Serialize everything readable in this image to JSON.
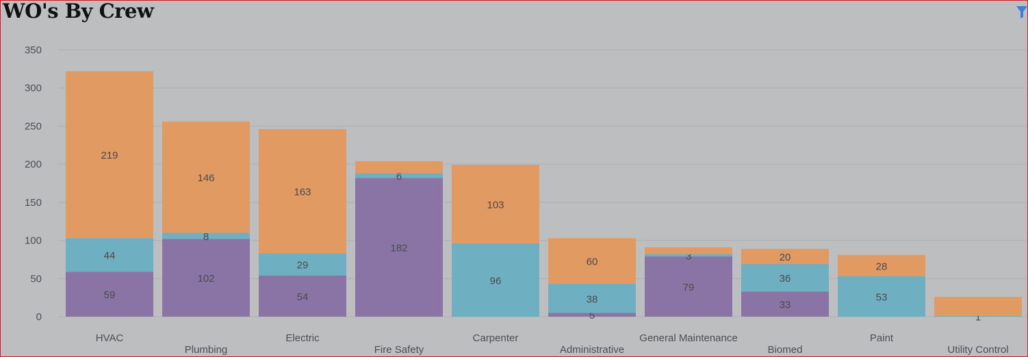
{
  "title": "WO's By Crew",
  "filter_icon": "filter-icon",
  "chart_data": {
    "type": "bar",
    "stacked": true,
    "categories": [
      "HVAC",
      "Plumbing",
      "Electric",
      "Fire Safety",
      "Carpenter",
      "Administrative",
      "General Maintenance",
      "Biomed",
      "Paint",
      "Utility Control"
    ],
    "series": [
      {
        "color": "#8a74a6",
        "values": [
          59,
          102,
          54,
          182,
          0,
          5,
          79,
          33,
          0,
          0
        ]
      },
      {
        "color": "#6eafc2",
        "values": [
          44,
          8,
          29,
          6,
          96,
          38,
          3,
          36,
          53,
          1
        ]
      },
      {
        "color": "#e09a62",
        "values": [
          219,
          146,
          163,
          16,
          103,
          60,
          9,
          20,
          28,
          25
        ]
      }
    ],
    "data_labels": [
      [
        "59",
        "44",
        "219"
      ],
      [
        "102",
        "8",
        "146"
      ],
      [
        "54",
        "29",
        "163"
      ],
      [
        "182",
        "6",
        ""
      ],
      [
        "",
        "96",
        "103"
      ],
      [
        "5",
        "38",
        "60"
      ],
      [
        "79",
        "3",
        ""
      ],
      [
        "33",
        "36",
        "20"
      ],
      [
        "",
        "53",
        "28"
      ],
      [
        "",
        "1",
        ""
      ]
    ],
    "y_ticks": [
      "0",
      "50",
      "100",
      "150",
      "200",
      "250",
      "300",
      "350"
    ],
    "ylim": [
      0,
      350
    ],
    "grid": true,
    "legend": "none"
  }
}
